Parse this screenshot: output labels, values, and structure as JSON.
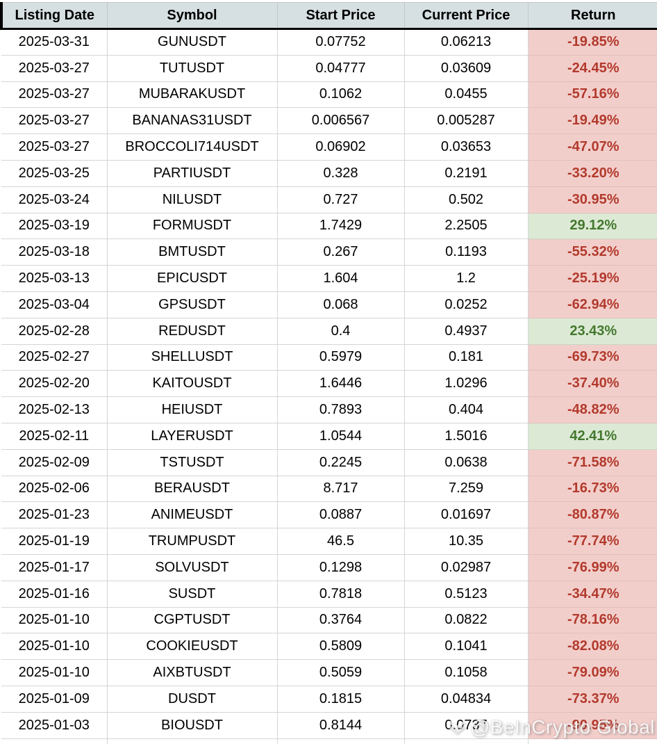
{
  "chart_data": {
    "type": "table",
    "title": "",
    "columns": [
      "Listing Date",
      "Symbol",
      "Start Price",
      "Current Price",
      "Return"
    ],
    "rows": [
      {
        "listing_date": "2025-03-31",
        "symbol": "GUNUSDT",
        "start_price": "0.07752",
        "current_price": "0.06213",
        "return": "-19.85%",
        "direction": "negative"
      },
      {
        "listing_date": "2025-03-27",
        "symbol": "TUTUSDT",
        "start_price": "0.04777",
        "current_price": "0.03609",
        "return": "-24.45%",
        "direction": "negative"
      },
      {
        "listing_date": "2025-03-27",
        "symbol": "MUBARAKUSDT",
        "start_price": "0.1062",
        "current_price": "0.0455",
        "return": "-57.16%",
        "direction": "negative"
      },
      {
        "listing_date": "2025-03-27",
        "symbol": "BANANAS31USDT",
        "start_price": "0.006567",
        "current_price": "0.005287",
        "return": "-19.49%",
        "direction": "negative"
      },
      {
        "listing_date": "2025-03-27",
        "symbol": "BROCCOLI714USDT",
        "start_price": "0.06902",
        "current_price": "0.03653",
        "return": "-47.07%",
        "direction": "negative"
      },
      {
        "listing_date": "2025-03-25",
        "symbol": "PARTIUSDT",
        "start_price": "0.328",
        "current_price": "0.2191",
        "return": "-33.20%",
        "direction": "negative"
      },
      {
        "listing_date": "2025-03-24",
        "symbol": "NILUSDT",
        "start_price": "0.727",
        "current_price": "0.502",
        "return": "-30.95%",
        "direction": "negative"
      },
      {
        "listing_date": "2025-03-19",
        "symbol": "FORMUSDT",
        "start_price": "1.7429",
        "current_price": "2.2505",
        "return": "29.12%",
        "direction": "positive"
      },
      {
        "listing_date": "2025-03-18",
        "symbol": "BMTUSDT",
        "start_price": "0.267",
        "current_price": "0.1193",
        "return": "-55.32%",
        "direction": "negative"
      },
      {
        "listing_date": "2025-03-13",
        "symbol": "EPICUSDT",
        "start_price": "1.604",
        "current_price": "1.2",
        "return": "-25.19%",
        "direction": "negative"
      },
      {
        "listing_date": "2025-03-04",
        "symbol": "GPSUSDT",
        "start_price": "0.068",
        "current_price": "0.0252",
        "return": "-62.94%",
        "direction": "negative"
      },
      {
        "listing_date": "2025-02-28",
        "symbol": "REDUSDT",
        "start_price": "0.4",
        "current_price": "0.4937",
        "return": "23.43%",
        "direction": "positive"
      },
      {
        "listing_date": "2025-02-27",
        "symbol": "SHELLUSDT",
        "start_price": "0.5979",
        "current_price": "0.181",
        "return": "-69.73%",
        "direction": "negative"
      },
      {
        "listing_date": "2025-02-20",
        "symbol": "KAITOUSDT",
        "start_price": "1.6446",
        "current_price": "1.0296",
        "return": "-37.40%",
        "direction": "negative"
      },
      {
        "listing_date": "2025-02-13",
        "symbol": "HEIUSDT",
        "start_price": "0.7893",
        "current_price": "0.404",
        "return": "-48.82%",
        "direction": "negative"
      },
      {
        "listing_date": "2025-02-11",
        "symbol": "LAYERUSDT",
        "start_price": "1.0544",
        "current_price": "1.5016",
        "return": "42.41%",
        "direction": "positive"
      },
      {
        "listing_date": "2025-02-09",
        "symbol": "TSTUSDT",
        "start_price": "0.2245",
        "current_price": "0.0638",
        "return": "-71.58%",
        "direction": "negative"
      },
      {
        "listing_date": "2025-02-06",
        "symbol": "BERAUSDT",
        "start_price": "8.717",
        "current_price": "7.259",
        "return": "-16.73%",
        "direction": "negative"
      },
      {
        "listing_date": "2025-01-23",
        "symbol": "ANIMEUSDT",
        "start_price": "0.0887",
        "current_price": "0.01697",
        "return": "-80.87%",
        "direction": "negative"
      },
      {
        "listing_date": "2025-01-19",
        "symbol": "TRUMPUSDT",
        "start_price": "46.5",
        "current_price": "10.35",
        "return": "-77.74%",
        "direction": "negative"
      },
      {
        "listing_date": "2025-01-17",
        "symbol": "SOLVUSDT",
        "start_price": "0.1298",
        "current_price": "0.02987",
        "return": "-76.99%",
        "direction": "negative"
      },
      {
        "listing_date": "2025-01-16",
        "symbol": "SUSDT",
        "start_price": "0.7818",
        "current_price": "0.5123",
        "return": "-34.47%",
        "direction": "negative"
      },
      {
        "listing_date": "2025-01-10",
        "symbol": "CGPTUSDT",
        "start_price": "0.3764",
        "current_price": "0.0822",
        "return": "-78.16%",
        "direction": "negative"
      },
      {
        "listing_date": "2025-01-10",
        "symbol": "COOKIEUSDT",
        "start_price": "0.5809",
        "current_price": "0.1041",
        "return": "-82.08%",
        "direction": "negative"
      },
      {
        "listing_date": "2025-01-10",
        "symbol": "AIXBTUSDT",
        "start_price": "0.5059",
        "current_price": "0.1058",
        "return": "-79.09%",
        "direction": "negative"
      },
      {
        "listing_date": "2025-01-09",
        "symbol": "DUSDT",
        "start_price": "0.1815",
        "current_price": "0.04834",
        "return": "-73.37%",
        "direction": "negative"
      },
      {
        "listing_date": "2025-01-03",
        "symbol": "BIOUSDT",
        "start_price": "0.8144",
        "current_price": "0.0737",
        "return": "-90.95%",
        "direction": "negative"
      }
    ],
    "legend_position": "none",
    "grid": true
  },
  "watermark": {
    "text": "@BeInCrypto Global",
    "icon": "beincrypto-diamond-logo"
  },
  "colors": {
    "header_bg": "#d6dfe2",
    "header_text": "#000000",
    "body_text": "#000000",
    "negative_bg": "#f2cecb",
    "negative_text": "#b23a2c",
    "positive_bg": "#dcead5",
    "positive_text": "#44782e",
    "gridline": "#d2d5d7",
    "header_divider": "#000000"
  }
}
